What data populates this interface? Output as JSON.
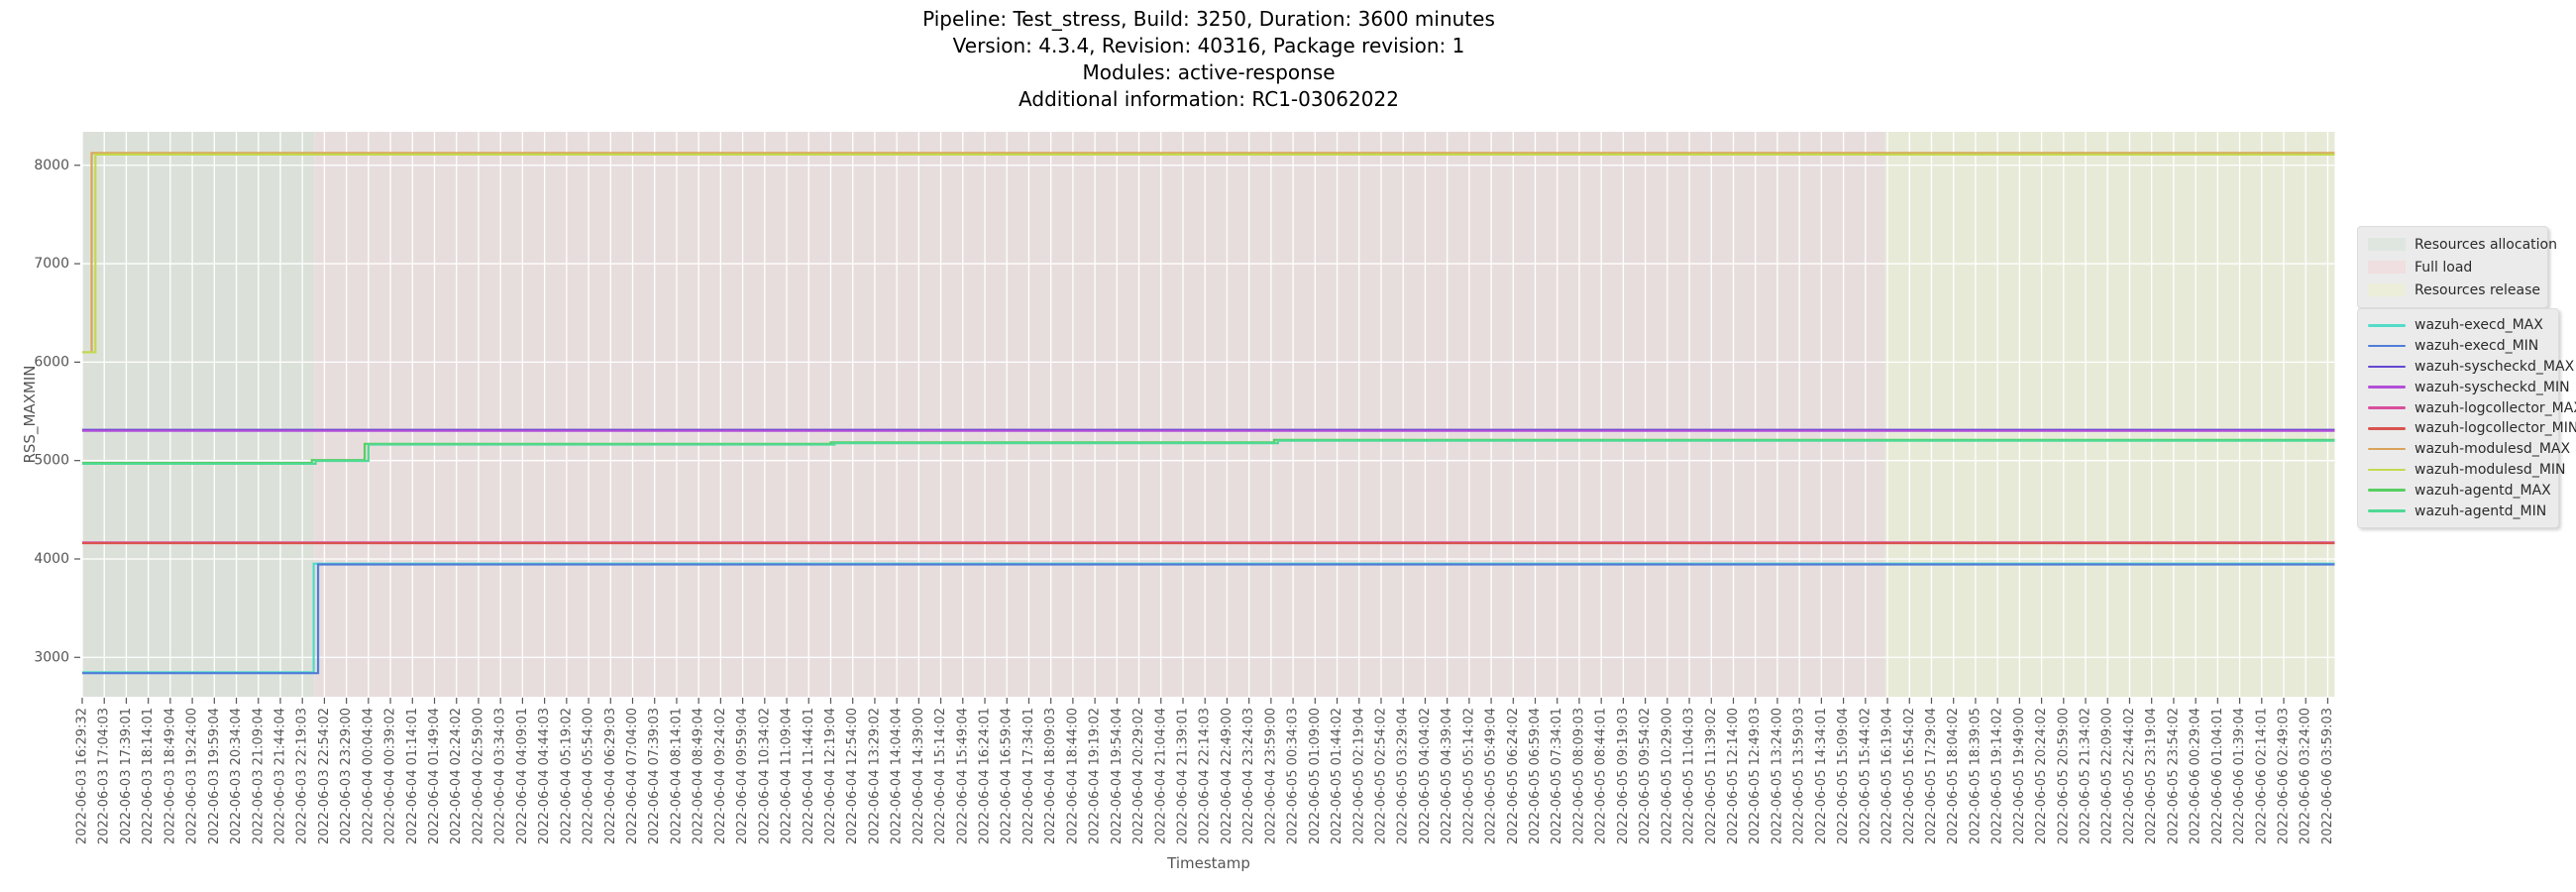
{
  "chart_data": {
    "type": "line",
    "title_lines": [
      "Pipeline: Test_stress, Build: 3250, Duration: 3600 minutes",
      "Version: 4.3.4, Revision: 40316, Package revision: 1",
      "Modules: active-response",
      "Additional information: RC1-03062022"
    ],
    "xlabel": "Timestamp",
    "ylabel": "RSS_MAXMIN",
    "ylim": [
      2600,
      8340
    ],
    "y_ticks": [
      3000,
      4000,
      5000,
      6000,
      7000,
      8000
    ],
    "grid": "white gridlines on shaded background",
    "legend_position": "right",
    "x_tick_interval_minutes": 35,
    "x_ticks": [
      "2022-06-03 16:29:32",
      "2022-06-03 17:04:03",
      "2022-06-03 17:39:01",
      "2022-06-03 18:14:01",
      "2022-06-03 18:49:04",
      "2022-06-03 19:24:00",
      "2022-06-03 19:59:04",
      "2022-06-03 20:34:04",
      "2022-06-03 21:09:04",
      "2022-06-03 21:44:04",
      "2022-06-03 22:19:03",
      "2022-06-03 22:54:02",
      "2022-06-03 23:29:00",
      "2022-06-04 00:04:04",
      "2022-06-04 00:39:02",
      "2022-06-04 01:14:01",
      "2022-06-04 01:49:04",
      "2022-06-04 02:24:02",
      "2022-06-04 02:59:00",
      "2022-06-04 03:34:03",
      "2022-06-04 04:09:01",
      "2022-06-04 04:44:03",
      "2022-06-04 05:19:02",
      "2022-06-04 05:54:00",
      "2022-06-04 06:29:03",
      "2022-06-04 07:04:00",
      "2022-06-04 07:39:03",
      "2022-06-04 08:14:01",
      "2022-06-04 08:49:04",
      "2022-06-04 09:24:02",
      "2022-06-04 09:59:04",
      "2022-06-04 10:34:02",
      "2022-06-04 11:09:04",
      "2022-06-04 11:44:01",
      "2022-06-04 12:19:04",
      "2022-06-04 12:54:00",
      "2022-06-04 13:29:02",
      "2022-06-04 14:04:04",
      "2022-06-04 14:39:00",
      "2022-06-04 15:14:02",
      "2022-06-04 15:49:04",
      "2022-06-04 16:24:01",
      "2022-06-04 16:59:04",
      "2022-06-04 17:34:01",
      "2022-06-04 18:09:03",
      "2022-06-04 18:44:00",
      "2022-06-04 19:19:02",
      "2022-06-04 19:54:04",
      "2022-06-04 20:29:02",
      "2022-06-04 21:04:04",
      "2022-06-04 21:39:01",
      "2022-06-04 22:14:03",
      "2022-06-04 22:49:00",
      "2022-06-04 23:24:03",
      "2022-06-04 23:59:00",
      "2022-06-05 00:34:03",
      "2022-06-05 01:09:00",
      "2022-06-05 01:44:02",
      "2022-06-05 02:19:04",
      "2022-06-05 02:54:02",
      "2022-06-05 03:29:04",
      "2022-06-05 04:04:02",
      "2022-06-05 04:39:04",
      "2022-06-05 05:14:02",
      "2022-06-05 05:49:04",
      "2022-06-05 06:24:02",
      "2022-06-05 06:59:04",
      "2022-06-05 07:34:01",
      "2022-06-05 08:09:03",
      "2022-06-05 08:44:01",
      "2022-06-05 09:19:03",
      "2022-06-05 09:54:02",
      "2022-06-05 10:29:00",
      "2022-06-05 11:04:03",
      "2022-06-05 11:39:02",
      "2022-06-05 12:14:00",
      "2022-06-05 12:49:03",
      "2022-06-05 13:24:00",
      "2022-06-05 13:59:03",
      "2022-06-05 14:34:01",
      "2022-06-05 15:09:04",
      "2022-06-05 15:44:02",
      "2022-06-05 16:19:04",
      "2022-06-05 16:54:02",
      "2022-06-05 17:29:04",
      "2022-06-05 18:04:02",
      "2022-06-05 18:39:05",
      "2022-06-05 19:14:02",
      "2022-06-05 19:49:00",
      "2022-06-05 20:24:02",
      "2022-06-05 20:59:00",
      "2022-06-05 21:34:02",
      "2022-06-05 22:09:00",
      "2022-06-05 22:44:02",
      "2022-06-05 23:19:04",
      "2022-06-05 23:54:02",
      "2022-06-06 00:29:04",
      "2022-06-06 01:04:01",
      "2022-06-06 01:39:04",
      "2022-06-06 02:14:01",
      "2022-06-06 02:49:03",
      "2022-06-06 03:24:00",
      "2022-06-06 03:59:03"
    ],
    "regions": [
      {
        "label": "Resources allocation",
        "color": "#dbe1d9",
        "legend_color": "#dfe6df",
        "start_min": 0,
        "end_min": 369
      },
      {
        "label": "Full load",
        "color": "#e8dddd",
        "legend_color": "#f0dfe0",
        "start_min": 369,
        "end_min": 2866
      },
      {
        "label": "Resources release",
        "color": "#e8ead8",
        "legend_color": "#edeeda",
        "start_min": 2866,
        "end_min": 3581
      }
    ],
    "series": [
      {
        "name": "wazuh-execd_MAX",
        "color": "#52dcc8",
        "points": [
          [
            0,
            2848
          ],
          [
            367,
            2848
          ],
          [
            368,
            3952
          ],
          [
            3581,
            3952
          ]
        ]
      },
      {
        "name": "wazuh-execd_MIN",
        "color": "#4f7dd9",
        "points": [
          [
            0,
            2840
          ],
          [
            374,
            2840
          ],
          [
            375,
            3944
          ],
          [
            3581,
            3944
          ]
        ]
      },
      {
        "name": "wazuh-syscheckd_MAX",
        "color": "#6248d0",
        "points": [
          [
            0,
            5312
          ],
          [
            3581,
            5312
          ]
        ]
      },
      {
        "name": "wazuh-syscheckd_MIN",
        "color": "#b24fd9",
        "points": [
          [
            0,
            5302
          ],
          [
            3581,
            5302
          ]
        ]
      },
      {
        "name": "wazuh-logcollector_MAX",
        "color": "#d94f9d",
        "points": [
          [
            0,
            4168
          ],
          [
            3581,
            4168
          ]
        ]
      },
      {
        "name": "wazuh-logcollector_MIN",
        "color": "#d9534f",
        "points": [
          [
            0,
            4160
          ],
          [
            3581,
            4160
          ]
        ]
      },
      {
        "name": "wazuh-modulesd_MAX",
        "color": "#d9a45c",
        "points": [
          [
            0,
            6100
          ],
          [
            14,
            6100
          ],
          [
            15,
            8125
          ],
          [
            3581,
            8125
          ]
        ]
      },
      {
        "name": "wazuh-modulesd_MIN",
        "color": "#c3d94e",
        "points": [
          [
            0,
            6100
          ],
          [
            20,
            6100
          ],
          [
            21,
            8110
          ],
          [
            3581,
            8110
          ]
        ]
      },
      {
        "name": "wazuh-agentd_MAX",
        "color": "#57cf60",
        "points": [
          [
            0,
            4975
          ],
          [
            364,
            4975
          ],
          [
            365,
            5005
          ],
          [
            448,
            5005
          ],
          [
            449,
            5170
          ],
          [
            1189,
            5170
          ],
          [
            1190,
            5185
          ],
          [
            1894,
            5185
          ],
          [
            1895,
            5210
          ],
          [
            3581,
            5210
          ]
        ]
      },
      {
        "name": "wazuh-agentd_MIN",
        "color": "#4fd995",
        "points": [
          [
            0,
            4967
          ],
          [
            370,
            4967
          ],
          [
            371,
            4997
          ],
          [
            454,
            4997
          ],
          [
            455,
            5162
          ],
          [
            1195,
            5162
          ],
          [
            1196,
            5177
          ],
          [
            1900,
            5177
          ],
          [
            1901,
            5202
          ],
          [
            3581,
            5202
          ]
        ]
      }
    ]
  }
}
